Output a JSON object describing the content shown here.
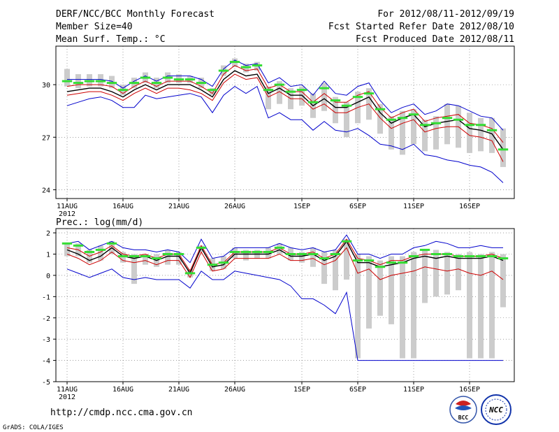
{
  "header": {
    "title": "DERF/NCC/BCC Monthly Forecast",
    "member_size": "Member Size=40",
    "variable": "Mean Surf. Temp.: °C",
    "forecast_period": "For 2012/08/11-2012/09/19",
    "fcst_started": "Fcst Started Refer Date 2012/08/10",
    "fcst_produced": "Fcst Produced Date 2012/08/11"
  },
  "footer": {
    "url": "http://cmdp.ncc.cma.gov.cn",
    "grads_credit": "GrADS: COLA/IGES",
    "logo_bcc": "BCC",
    "logo_ncc": "NCC"
  },
  "colors": {
    "ens_max_min": "#0000cc",
    "spread": "#cc0000",
    "mean": "#000000",
    "box": "#cccccc",
    "median": "#33dd33"
  },
  "chart_data": [
    {
      "type": "line",
      "title": "Mean Surf. Temp.: °C",
      "x": [
        1,
        2,
        3,
        4,
        5,
        6,
        7,
        8,
        9,
        10,
        11,
        12,
        13,
        14,
        15,
        16,
        17,
        18,
        19,
        20,
        21,
        22,
        23,
        24,
        25,
        26,
        27,
        28,
        29,
        30,
        31,
        32,
        33,
        34,
        35,
        36,
        37,
        38,
        39,
        40
      ],
      "xlim": [
        0,
        41
      ],
      "x_ticks": [
        {
          "x": 1,
          "label": "11AUG"
        },
        {
          "x": 6,
          "label": "16AUG"
        },
        {
          "x": 11,
          "label": "21AUG"
        },
        {
          "x": 16,
          "label": "26AUG"
        },
        {
          "x": 22,
          "label": "1SEP"
        },
        {
          "x": 27,
          "label": "6SEP"
        },
        {
          "x": 32,
          "label": "11SEP"
        },
        {
          "x": 37,
          "label": "16SEP"
        }
      ],
      "year_label": "2012",
      "ylim": [
        23.5,
        32.2
      ],
      "y_ticks": [
        24,
        27,
        30
      ],
      "series": [
        {
          "name": "ens_max",
          "color_key": "ens_max_min",
          "values": [
            30.3,
            30.3,
            30.3,
            30.3,
            30.2,
            29.8,
            30.2,
            30.5,
            30.2,
            30.5,
            30.5,
            30.5,
            30.3,
            29.9,
            30.9,
            31.4,
            31.1,
            31.2,
            30.1,
            30.4,
            29.9,
            30.0,
            29.4,
            30.2,
            29.5,
            29.4,
            29.9,
            30.1,
            29.1,
            28.4,
            28.7,
            28.9,
            28.3,
            28.5,
            28.9,
            28.8,
            28.5,
            28.2,
            28.1,
            27.4
          ]
        },
        {
          "name": "spread_upper",
          "color_key": "spread",
          "values": [
            29.9,
            30.0,
            30.0,
            30.0,
            29.9,
            29.5,
            29.9,
            30.2,
            29.9,
            30.2,
            30.2,
            30.2,
            29.9,
            29.5,
            30.6,
            31.1,
            30.8,
            30.9,
            29.8,
            30.0,
            29.6,
            29.6,
            29.0,
            29.5,
            29.0,
            29.0,
            29.4,
            29.6,
            28.7,
            28.1,
            28.4,
            28.6,
            27.9,
            28.1,
            28.2,
            28.3,
            27.8,
            27.7,
            27.5,
            26.7
          ]
        },
        {
          "name": "mean",
          "color_key": "mean",
          "values": [
            29.6,
            29.7,
            29.8,
            29.8,
            29.6,
            29.3,
            29.7,
            30.0,
            29.7,
            30.0,
            30.0,
            30.0,
            29.7,
            29.3,
            30.3,
            30.8,
            30.5,
            30.6,
            29.5,
            29.8,
            29.4,
            29.4,
            28.8,
            29.2,
            28.7,
            28.7,
            29.0,
            29.3,
            28.4,
            27.8,
            28.1,
            28.3,
            27.6,
            27.8,
            27.9,
            28.0,
            27.5,
            27.4,
            27.2,
            26.3
          ]
        },
        {
          "name": "spread_lower",
          "color_key": "spread",
          "values": [
            29.4,
            29.5,
            29.6,
            29.6,
            29.4,
            29.1,
            29.5,
            29.8,
            29.5,
            29.8,
            29.8,
            29.7,
            29.5,
            29.1,
            30.1,
            30.6,
            30.3,
            30.4,
            29.3,
            29.6,
            29.2,
            29.2,
            28.6,
            28.9,
            28.4,
            28.4,
            28.7,
            28.9,
            28.1,
            27.5,
            27.8,
            28.0,
            27.3,
            27.5,
            27.6,
            27.6,
            27.1,
            27.0,
            26.8,
            25.6
          ]
        },
        {
          "name": "ens_min",
          "color_key": "ens_max_min",
          "values": [
            28.8,
            29.0,
            29.2,
            29.3,
            29.1,
            28.7,
            28.7,
            29.4,
            29.2,
            29.3,
            29.4,
            29.5,
            29.3,
            28.4,
            29.4,
            29.9,
            29.5,
            29.9,
            28.1,
            28.4,
            28.0,
            28.0,
            27.4,
            27.9,
            27.4,
            27.3,
            27.5,
            27.1,
            26.6,
            26.5,
            26.3,
            26.6,
            26.0,
            25.9,
            25.7,
            25.6,
            25.4,
            25.3,
            25.0,
            24.4
          ]
        }
      ],
      "boxes": {
        "low": [
          29.9,
          29.8,
          29.9,
          29.9,
          29.8,
          29.4,
          29.8,
          30.1,
          29.8,
          30.1,
          30.1,
          30.1,
          29.8,
          29.4,
          30.5,
          31.0,
          30.7,
          30.8,
          28.6,
          28.9,
          28.6,
          28.8,
          28.1,
          28.5,
          27.8,
          27.0,
          27.8,
          28.0,
          27.2,
          26.3,
          26.0,
          26.6,
          26.2,
          26.3,
          26.6,
          26.4,
          26.1,
          26.2,
          26.1,
          25.3
        ],
        "high": [
          30.9,
          30.6,
          30.6,
          30.6,
          30.5,
          30.0,
          30.4,
          30.7,
          30.4,
          30.7,
          30.6,
          30.5,
          30.4,
          29.8,
          31.1,
          31.5,
          31.2,
          31.3,
          29.9,
          30.2,
          29.8,
          29.9,
          29.5,
          30.1,
          29.3,
          29.0,
          29.6,
          29.8,
          28.9,
          28.2,
          28.5,
          28.6,
          28.0,
          28.2,
          28.9,
          28.8,
          28.4,
          28.1,
          28.1,
          27.5
        ],
        "median": [
          30.2,
          30.1,
          30.2,
          30.2,
          30.1,
          29.7,
          30.1,
          30.4,
          30.1,
          30.4,
          30.3,
          30.3,
          30.1,
          29.7,
          30.8,
          31.3,
          31.0,
          31.1,
          29.7,
          30.0,
          29.6,
          29.7,
          29.0,
          29.8,
          29.1,
          28.8,
          29.3,
          29.5,
          28.6,
          28.0,
          28.1,
          28.3,
          27.7,
          27.8,
          28.1,
          28.0,
          27.7,
          27.7,
          27.4,
          26.3
        ]
      }
    },
    {
      "type": "line",
      "title": "Prec.: log(mm/d)",
      "x": [
        1,
        2,
        3,
        4,
        5,
        6,
        7,
        8,
        9,
        10,
        11,
        12,
        13,
        14,
        15,
        16,
        17,
        18,
        19,
        20,
        21,
        22,
        23,
        24,
        25,
        26,
        27,
        28,
        29,
        30,
        31,
        32,
        33,
        34,
        35,
        36,
        37,
        38,
        39,
        40
      ],
      "xlim": [
        0,
        41
      ],
      "x_ticks": [
        {
          "x": 1,
          "label": "11AUG"
        },
        {
          "x": 6,
          "label": "16AUG"
        },
        {
          "x": 11,
          "label": "21AUG"
        },
        {
          "x": 16,
          "label": "26AUG"
        },
        {
          "x": 22,
          "label": "1SEP"
        },
        {
          "x": 27,
          "label": "6SEP"
        },
        {
          "x": 32,
          "label": "11SEP"
        },
        {
          "x": 37,
          "label": "16SEP"
        }
      ],
      "year_label": "2012",
      "ylim": [
        -5,
        2.2
      ],
      "y_ticks": [
        -5,
        -4,
        -3,
        -2,
        -1,
        0,
        1,
        2
      ],
      "series": [
        {
          "name": "ens_max",
          "color_key": "ens_max_min",
          "values": [
            1.5,
            1.6,
            1.2,
            1.4,
            1.6,
            1.3,
            1.2,
            1.2,
            1.1,
            1.2,
            1.1,
            0.6,
            1.7,
            0.8,
            0.9,
            1.3,
            1.3,
            1.3,
            1.3,
            1.5,
            1.3,
            1.2,
            1.3,
            1.1,
            1.2,
            1.9,
            1.0,
            1.0,
            0.8,
            1.0,
            1.0,
            1.3,
            1.4,
            1.6,
            1.5,
            1.3,
            1.3,
            1.4,
            1.3,
            1.3
          ]
        },
        {
          "name": "spread_upper",
          "color_key": "spread",
          "values": [
            1.3,
            1.2,
            0.9,
            1.1,
            1.4,
            1.0,
            0.9,
            1.0,
            0.8,
            1.0,
            1.0,
            0.2,
            1.4,
            0.5,
            0.6,
            1.1,
            1.1,
            1.1,
            1.1,
            1.3,
            1.0,
            1.0,
            1.1,
            0.8,
            1.0,
            1.7,
            0.8,
            0.7,
            0.5,
            0.7,
            0.7,
            0.9,
            1.0,
            1.0,
            1.0,
            0.9,
            0.9,
            0.9,
            1.0,
            0.8
          ]
        },
        {
          "name": "mean",
          "color_key": "mean",
          "values": [
            1.2,
            1.0,
            0.7,
            0.9,
            1.3,
            0.9,
            0.8,
            0.9,
            0.7,
            0.9,
            0.9,
            0.1,
            1.3,
            0.4,
            0.5,
            1.0,
            1.0,
            1.0,
            1.0,
            1.2,
            0.9,
            0.9,
            1.0,
            0.7,
            0.9,
            1.6,
            0.6,
            0.6,
            0.4,
            0.5,
            0.6,
            0.8,
            0.9,
            0.8,
            0.9,
            0.8,
            0.8,
            0.8,
            0.9,
            0.7
          ]
        },
        {
          "name": "spread_lower",
          "color_key": "spread",
          "values": [
            1.0,
            0.8,
            0.5,
            0.7,
            1.1,
            0.7,
            0.6,
            0.7,
            0.5,
            0.7,
            0.7,
            -0.1,
            1.1,
            0.2,
            0.3,
            0.8,
            0.8,
            0.8,
            0.8,
            1.0,
            0.7,
            0.7,
            0.8,
            0.5,
            0.7,
            1.3,
            0.1,
            0.3,
            -0.2,
            0.0,
            0.1,
            0.2,
            0.4,
            0.3,
            0.2,
            0.3,
            0.1,
            0.0,
            0.2,
            -0.2
          ]
        },
        {
          "name": "ens_min",
          "color_key": "ens_max_min",
          "values": [
            0.3,
            0.1,
            -0.1,
            0.1,
            0.3,
            -0.1,
            -0.2,
            -0.1,
            -0.2,
            -0.2,
            -0.2,
            -0.6,
            0.2,
            -0.2,
            -0.2,
            0.2,
            0.1,
            0.0,
            -0.1,
            -0.2,
            -0.5,
            -1.1,
            -1.1,
            -1.4,
            -1.8,
            -0.8,
            -4.0,
            -4.0,
            -4.0,
            -4.0,
            -4.0,
            -4.0,
            -4.0,
            -4.0,
            -4.0,
            -4.0,
            -4.0,
            -4.0,
            -4.0,
            -4.0
          ]
        }
      ],
      "boxes": {
        "low": [
          0.9,
          0.9,
          0.6,
          0.7,
          1.0,
          0.6,
          -0.4,
          0.5,
          0.4,
          0.5,
          0.5,
          -0.1,
          1.1,
          0.2,
          0.3,
          0.8,
          0.7,
          0.8,
          0.8,
          1.0,
          0.7,
          0.6,
          0.4,
          -0.4,
          -0.7,
          -0.2,
          -3.9,
          -2.5,
          -1.9,
          -2.3,
          -3.9,
          -3.9,
          -1.3,
          -1.0,
          -0.9,
          -0.7,
          -3.9,
          -3.9,
          -3.9,
          -1.5
        ],
        "high": [
          1.5,
          1.5,
          1.2,
          1.4,
          1.6,
          1.1,
          1.0,
          1.0,
          1.0,
          1.2,
          1.1,
          0.3,
          1.4,
          0.8,
          0.9,
          1.3,
          1.2,
          1.2,
          1.3,
          1.5,
          1.3,
          1.1,
          1.3,
          1.1,
          1.2,
          1.7,
          1.0,
          0.9,
          0.7,
          0.9,
          0.9,
          1.1,
          1.2,
          1.2,
          1.1,
          1.0,
          1.1,
          1.0,
          1.1,
          1.0
        ],
        "median": [
          1.5,
          1.4,
          1.1,
          1.2,
          1.5,
          0.9,
          0.9,
          0.9,
          0.8,
          1.0,
          1.0,
          0.1,
          1.3,
          0.5,
          0.6,
          1.1,
          1.1,
          1.1,
          1.1,
          1.3,
          1.0,
          1.0,
          1.0,
          0.8,
          1.0,
          1.6,
          0.7,
          0.7,
          0.4,
          0.6,
          0.6,
          0.9,
          1.2,
          1.0,
          1.0,
          0.9,
          0.9,
          0.9,
          0.9,
          0.8
        ]
      }
    }
  ]
}
